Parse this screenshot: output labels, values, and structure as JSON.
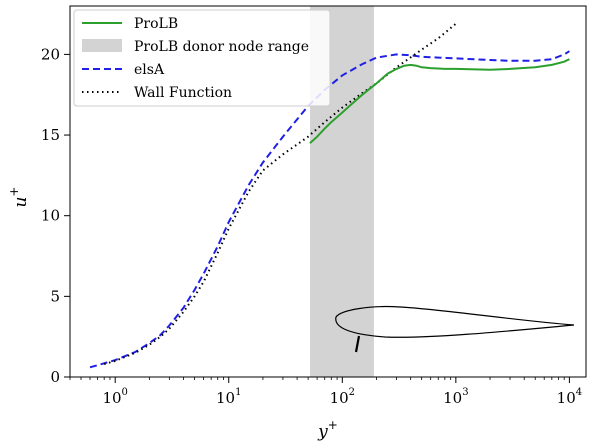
{
  "chart_data": {
    "type": "line",
    "x_scale": "log",
    "xlim": [
      0.4,
      14000
    ],
    "ylim": [
      0,
      23
    ],
    "xlabel": "y",
    "xlabel_sup": "+",
    "ylabel": "u",
    "ylabel_sup": "+",
    "x_ticks": [
      {
        "base": "10",
        "exp": "0",
        "value": 1
      },
      {
        "base": "10",
        "exp": "1",
        "value": 10
      },
      {
        "base": "10",
        "exp": "2",
        "value": 100
      },
      {
        "base": "10",
        "exp": "3",
        "value": 1000
      },
      {
        "base": "10",
        "exp": "4",
        "value": 10000
      }
    ],
    "y_ticks": [
      {
        "label": "0",
        "value": 0
      },
      {
        "label": "5",
        "value": 5
      },
      {
        "label": "10",
        "value": 10
      },
      {
        "label": "15",
        "value": 15
      },
      {
        "label": "20",
        "value": 20
      }
    ],
    "shaded_band": {
      "name": "ProLB donor node range",
      "x_range": [
        52,
        190
      ],
      "color": "#d3d3d3"
    },
    "legend_position": "top-left",
    "grid": false,
    "series": [
      {
        "name": "ProLB",
        "color": "#2ca02c",
        "style": "solid",
        "x": [
          52,
          60,
          70,
          80,
          100,
          120,
          150,
          200,
          250,
          300,
          350,
          400,
          450,
          500,
          600,
          800,
          1000,
          2000,
          3000,
          5000,
          7000,
          9000,
          10000
        ],
        "y": [
          14.5,
          14.9,
          15.4,
          15.8,
          16.4,
          16.9,
          17.5,
          18.2,
          18.8,
          19.1,
          19.3,
          19.35,
          19.3,
          19.2,
          19.15,
          19.1,
          19.1,
          19.05,
          19.1,
          19.2,
          19.35,
          19.55,
          19.7
        ]
      },
      {
        "name": "elsA",
        "color": "#1f1fe6",
        "style": "dashed",
        "x": [
          0.6,
          0.8,
          1.0,
          1.5,
          2.0,
          2.5,
          3.0,
          4.0,
          5.0,
          6.0,
          8.0,
          10,
          15,
          20,
          30,
          50,
          70,
          100,
          150,
          200,
          300,
          400,
          500,
          700,
          1000,
          2000,
          3000,
          5000,
          7000,
          9000,
          10000
        ],
        "y": [
          0.6,
          0.85,
          1.05,
          1.55,
          2.1,
          2.6,
          3.2,
          4.3,
          5.4,
          6.4,
          8.1,
          9.6,
          11.9,
          13.3,
          14.9,
          16.8,
          17.8,
          18.7,
          19.4,
          19.8,
          20.0,
          19.95,
          19.85,
          19.8,
          19.75,
          19.65,
          19.6,
          19.6,
          19.7,
          20.0,
          20.2
        ]
      },
      {
        "name": "Wall Function",
        "color": "#000000",
        "style": "dotted",
        "x": [
          0.8,
          1.0,
          1.5,
          2.0,
          2.5,
          3.0,
          4.0,
          5.0,
          6.0,
          8.0,
          10,
          15,
          20,
          30,
          50,
          70,
          100,
          150,
          200,
          300,
          500,
          700,
          1000
        ],
        "y": [
          0.8,
          1.0,
          1.5,
          2.0,
          2.5,
          3.0,
          4.05,
          5.0,
          5.9,
          7.7,
          9.2,
          11.5,
          12.8,
          13.8,
          14.9,
          15.8,
          16.7,
          17.6,
          18.2,
          19.2,
          20.3,
          21.0,
          21.9
        ]
      }
    ]
  }
}
